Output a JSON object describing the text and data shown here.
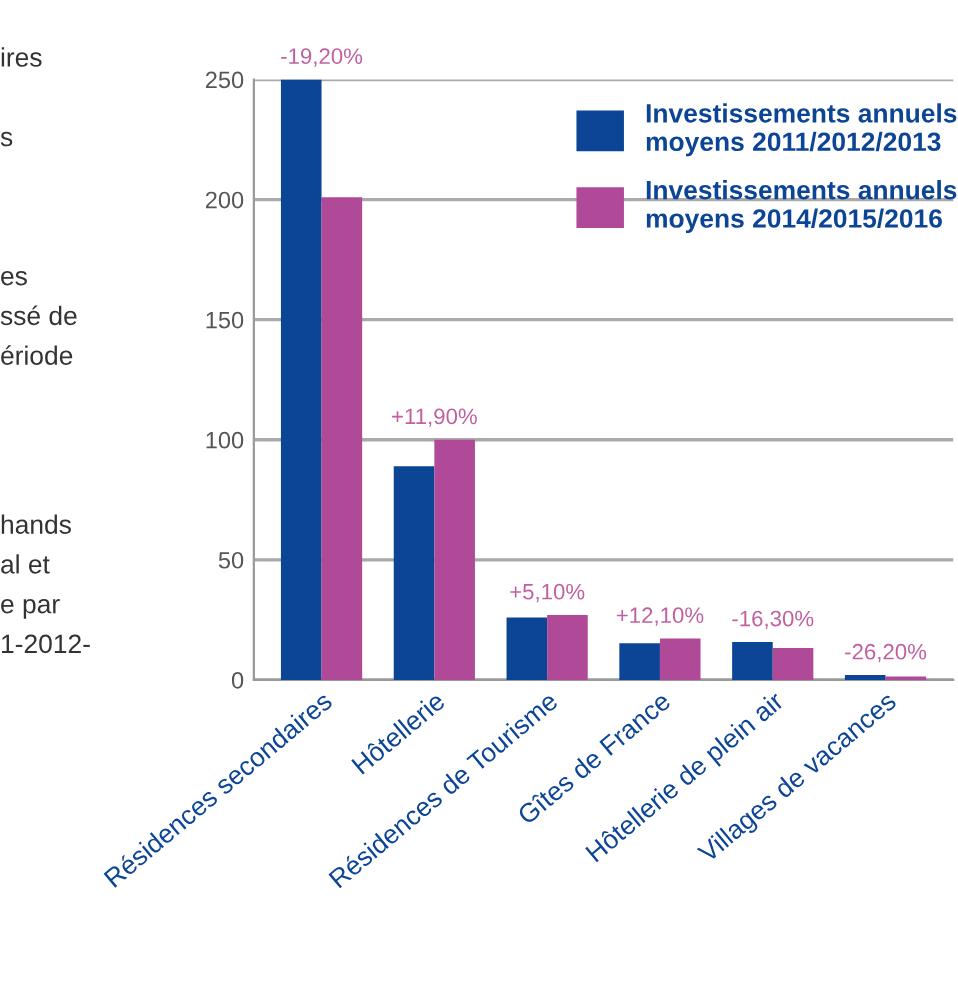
{
  "chart_data": {
    "type": "bar",
    "categories": [
      "Résidences secondaires",
      "Hôtellerie",
      "Résidences de Tourisme",
      "Gîtes de France",
      "Hôtellerie de plein air",
      "Villages de vacances"
    ],
    "series": [
      {
        "name": "Investissements annuels moyens 2011/2012/2013",
        "color": "#0d4596",
        "values": [
          250,
          89,
          26,
          15.3,
          15.8,
          2
        ]
      },
      {
        "name": "Investissements annuels moyens 2014/2015/2016",
        "color": "#b04a98",
        "values": [
          201,
          100,
          27,
          17.2,
          13.3,
          1.4
        ]
      }
    ],
    "ylim": [
      0,
      250
    ],
    "yticks": [
      0,
      50,
      100,
      150,
      200,
      250
    ],
    "grid": "y",
    "legend": "top right",
    "annotations": [
      {
        "text": "-19,20%",
        "x": "Résidences secondaires",
        "y": 250
      },
      {
        "text": "+11,90%",
        "x": "Hôtellerie",
        "y": 100
      },
      {
        "text": "+5,10%",
        "x": "Résidences de Tourisme",
        "y": 27
      },
      {
        "text": "+12,10%",
        "x": "Gîtes de France",
        "y": 17.2
      },
      {
        "text": "-16,30%",
        "x": "Hôtellerie de plein air",
        "y": 15.8
      },
      {
        "text": "-26,20%",
        "x": "Villages de vacances",
        "y": 2
      },
      "ires",
      "s",
      "es",
      "ssé de",
      "ériode",
      "hands",
      "al et",
      "e par",
      "1-2012-"
    ]
  }
}
